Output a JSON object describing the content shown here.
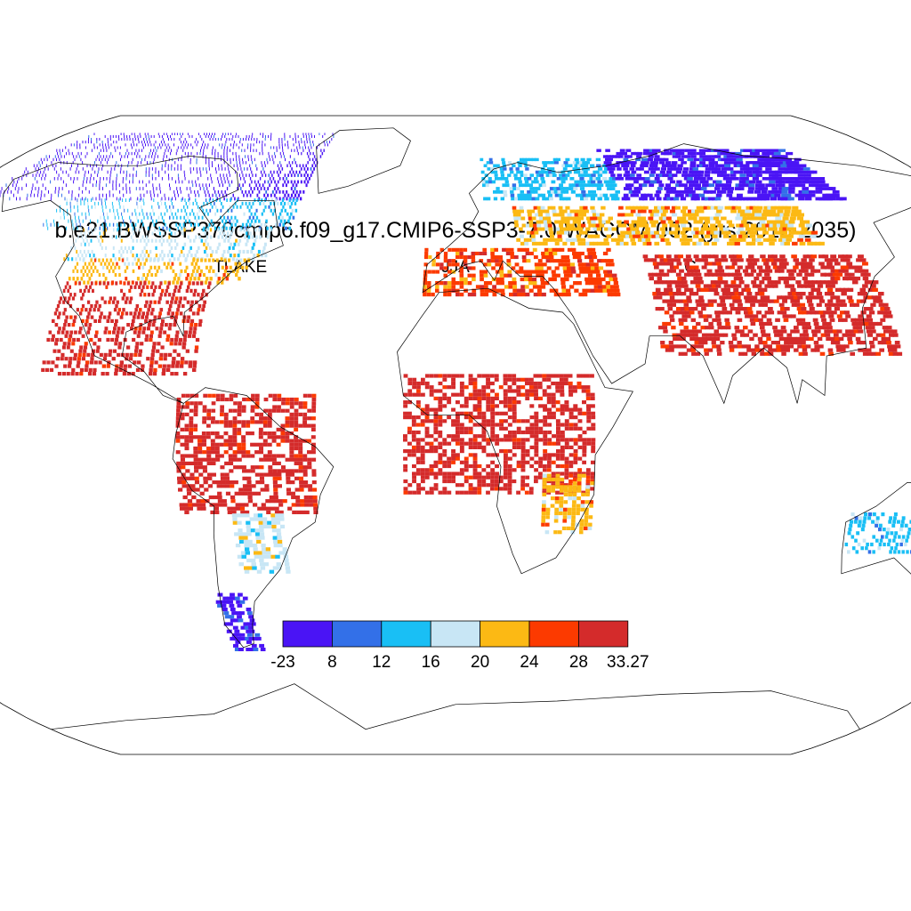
{
  "title": "b.e21.BWSSP370cmip6.f09_g17.CMIP6-SSP3-7.0-WACCM.002 (yrs 2016-2035)",
  "left_string": "TLAKE",
  "center_string": "JJA",
  "right_string": "C",
  "colorbar": {
    "labels": [
      "-23",
      "8",
      "12",
      "16",
      "20",
      "24",
      "28",
      "33.27"
    ],
    "colors": [
      "#4a14f5",
      "#3370e8",
      "#19bff5",
      "#c8e6f5",
      "#fcb914",
      "#fc3a00",
      "#d42b2b"
    ]
  },
  "chart_data": {
    "type": "heatmap",
    "projection": "Robinson",
    "variable": "TLAKE",
    "season": "JJA",
    "units": "C",
    "levels": [
      -23,
      8,
      12,
      16,
      20,
      24,
      28,
      33.27
    ],
    "regions": [
      {
        "lon": [
          -170,
          -55
        ],
        "lat": [
          60,
          80
        ],
        "level_index": 0
      },
      {
        "lon": [
          -140,
          -55
        ],
        "lat": [
          52,
          60
        ],
        "level_index": 2
      },
      {
        "lon": [
          -125,
          -60
        ],
        "lat": [
          44,
          52
        ],
        "level_index": 3
      },
      {
        "lon": [
          -120,
          -65
        ],
        "lat": [
          38,
          44
        ],
        "level_index": 4
      },
      {
        "lon": [
          -120,
          -75
        ],
        "lat": [
          15,
          38
        ],
        "level_index": 6
      },
      {
        "lon": [
          -80,
          -40
        ],
        "lat": [
          -20,
          10
        ],
        "level_index": 6
      },
      {
        "lon": [
          -65,
          -50
        ],
        "lat": [
          -35,
          -20
        ],
        "level_index": 3
      },
      {
        "lon": [
          -75,
          -65
        ],
        "lat": [
          -55,
          -40
        ],
        "level_index": 0
      },
      {
        "lon": [
          10,
          60
        ],
        "lat": [
          60,
          72
        ],
        "level_index": 2
      },
      {
        "lon": [
          60,
          140
        ],
        "lat": [
          60,
          75
        ],
        "level_index": 0
      },
      {
        "lon": [
          20,
          120
        ],
        "lat": [
          48,
          58
        ],
        "level_index": 4
      },
      {
        "lon": [
          -10,
          50
        ],
        "lat": [
          35,
          47
        ],
        "level_index": 5
      },
      {
        "lon": [
          60,
          130
        ],
        "lat": [
          20,
          45
        ],
        "level_index": 6
      },
      {
        "lon": [
          -15,
          40
        ],
        "lat": [
          -15,
          15
        ],
        "level_index": 6
      },
      {
        "lon": [
          25,
          40
        ],
        "lat": [
          -25,
          -10
        ],
        "level_index": 4
      },
      {
        "lon": [
          115,
          150
        ],
        "lat": [
          -30,
          -20
        ],
        "level_index": 2
      }
    ]
  }
}
